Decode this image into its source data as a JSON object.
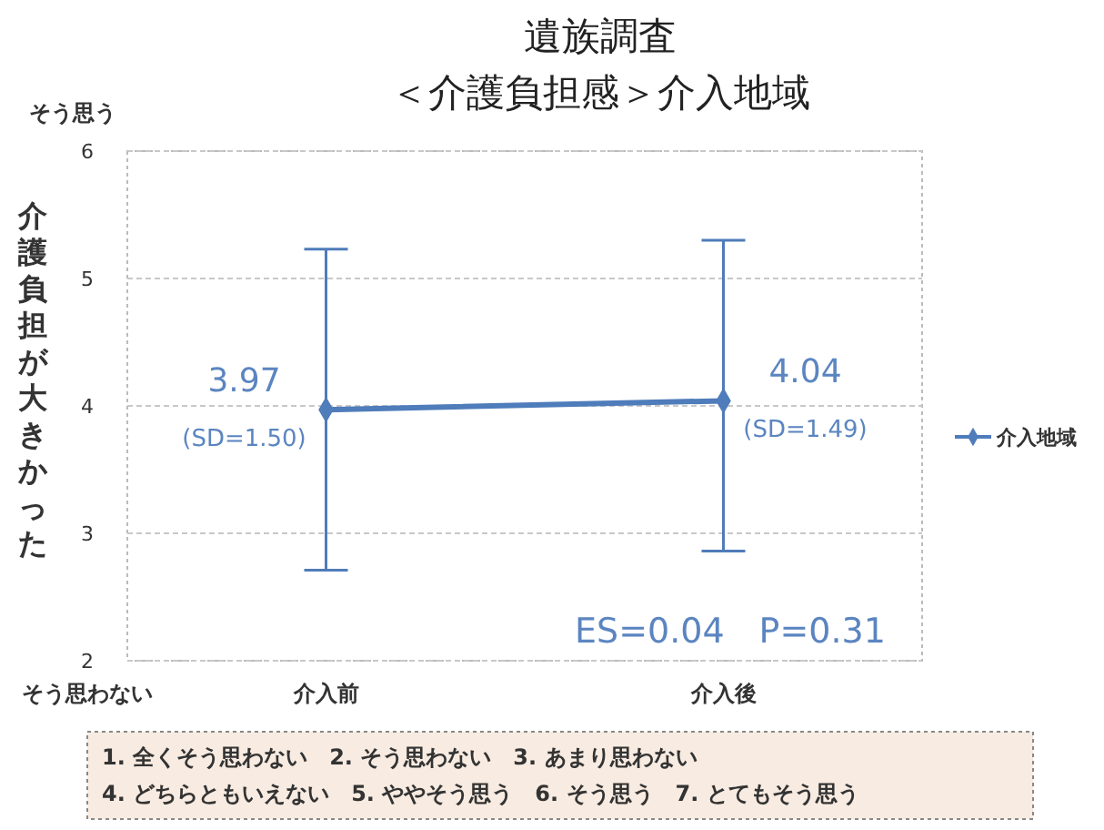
{
  "chart_data": {
    "type": "line",
    "title": "遺族調査",
    "subtitle": "＜介護負担感＞介入地域",
    "ylabel": "介護負担が大きかった",
    "categories": [
      "介入前",
      "介入後"
    ],
    "series": [
      {
        "name": "介入地域",
        "color": "#4f7cba",
        "values": [
          3.97,
          4.04
        ],
        "errors": [
          [
            2.71,
            5.23
          ],
          [
            2.86,
            5.3
          ]
        ]
      }
    ],
    "ylim": [
      2,
      6
    ],
    "yticks": [
      2,
      3,
      4,
      5,
      6
    ],
    "grid": "y",
    "legend": "right",
    "marker": "diamond",
    "data_labels": true,
    "annotations": [
      {
        "text": "(SD=1.50)",
        "x": "介入前",
        "y": 3.97
      },
      {
        "text": "(SD=1.49)",
        "x": "介入後",
        "y": 4.04
      },
      "ES=0.04　P=0.31",
      "そう思う",
      "そう思わない",
      "1. 全くそう思わない　2. そう思わない　3. あまり思わない",
      "4. どちらともいえない　5. ややそう思う　6. そう思う　7. とてもそう思う"
    ]
  }
}
